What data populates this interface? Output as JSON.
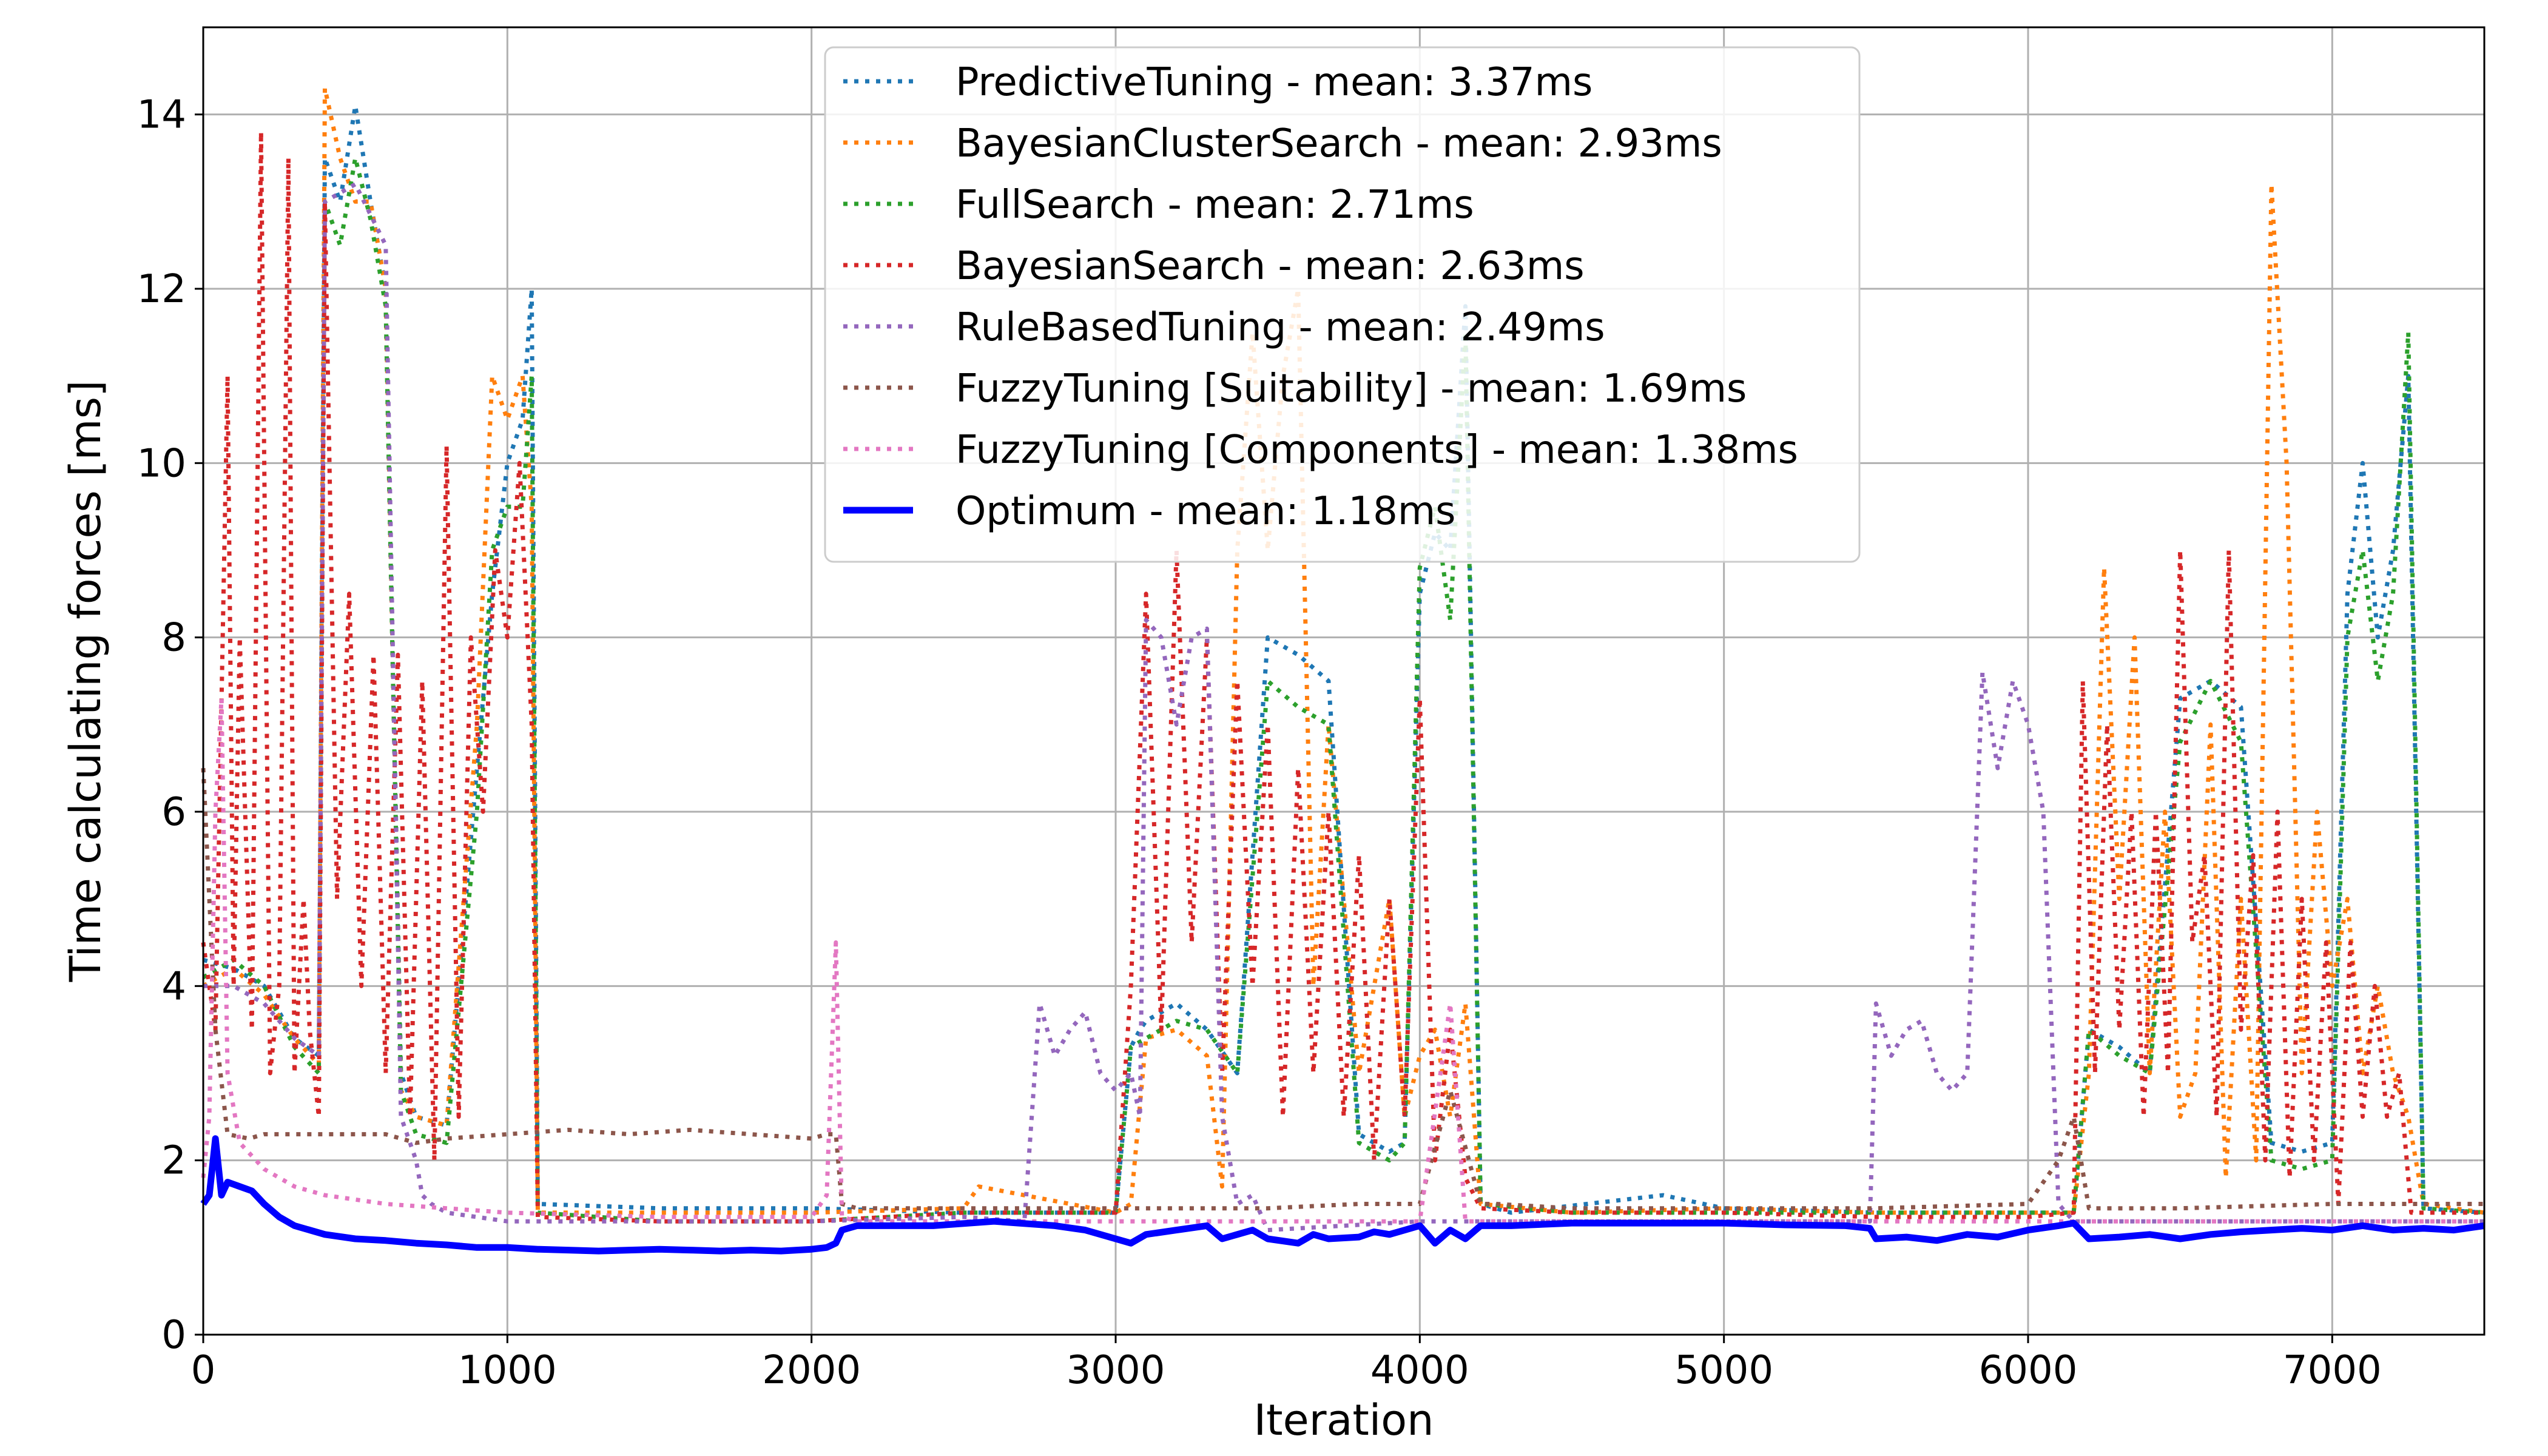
{
  "chart_data": {
    "type": "line",
    "title": "",
    "xlabel": "Iteration",
    "ylabel": "Time calculating forces [ms]",
    "xlim": [
      0,
      7500
    ],
    "ylim": [
      0,
      15
    ],
    "xticks": [
      0,
      1000,
      2000,
      3000,
      4000,
      5000,
      6000,
      7000
    ],
    "yticks": [
      0,
      2,
      4,
      6,
      8,
      10,
      12,
      14
    ],
    "grid": true,
    "legend_position": "top-center",
    "series": [
      {
        "name": "PredictiveTuning - mean: 3.37ms",
        "color": "#1f77b4",
        "style": "dotted",
        "x": [
          0,
          100,
          200,
          300,
          380,
          400,
          450,
          500,
          550,
          600,
          650,
          700,
          800,
          900,
          950,
          1000,
          1050,
          1080,
          1100,
          1500,
          2000,
          2500,
          3000,
          3050,
          3080,
          3100,
          3200,
          3300,
          3400,
          3500,
          3600,
          3700,
          3800,
          3900,
          3950,
          4000,
          4050,
          4100,
          4150,
          4200,
          4300,
          4800,
          5000,
          5500,
          6000,
          6150,
          6200,
          6300,
          6400,
          6500,
          6600,
          6700,
          6800,
          6900,
          7000,
          7050,
          7100,
          7150,
          7200,
          7250,
          7300,
          7500
        ],
        "y": [
          4.3,
          4.2,
          4.0,
          3.4,
          3.2,
          13.5,
          13.0,
          14.1,
          13.0,
          12.0,
          3.0,
          2.5,
          2.4,
          6.5,
          8.5,
          10.0,
          10.5,
          12.0,
          1.5,
          1.45,
          1.45,
          1.4,
          1.4,
          3.3,
          3.5,
          3.6,
          3.8,
          3.5,
          3.0,
          8.0,
          7.8,
          7.5,
          2.3,
          2.1,
          2.2,
          8.5,
          9.2,
          9.0,
          11.8,
          1.5,
          1.4,
          1.6,
          1.45,
          1.4,
          1.4,
          1.4,
          3.5,
          3.3,
          3.0,
          7.3,
          7.5,
          7.2,
          2.2,
          2.1,
          2.2,
          8.5,
          10.0,
          8.0,
          9.0,
          11.0,
          1.45,
          1.4
        ]
      },
      {
        "name": "BayesianClusterSearch - mean: 2.93ms",
        "color": "#ff7f0e",
        "style": "dotted",
        "x": [
          0,
          100,
          200,
          300,
          380,
          400,
          450,
          500,
          550,
          600,
          650,
          700,
          800,
          900,
          950,
          1000,
          1050,
          1080,
          1100,
          1500,
          2000,
          2500,
          2550,
          3000,
          3050,
          3100,
          3200,
          3300,
          3350,
          3400,
          3450,
          3500,
          3550,
          3600,
          3650,
          3700,
          3800,
          3900,
          3950,
          4000,
          4050,
          4100,
          4150,
          4200,
          4500,
          5000,
          5500,
          6000,
          6150,
          6200,
          6250,
          6300,
          6350,
          6400,
          6450,
          6500,
          6550,
          6600,
          6650,
          6700,
          6750,
          6800,
          6850,
          6900,
          6950,
          7000,
          7050,
          7100,
          7150,
          7200,
          7250,
          7300,
          7500
        ],
        "y": [
          4.0,
          4.2,
          3.9,
          3.4,
          3.1,
          14.3,
          13.5,
          13.0,
          13.0,
          12.0,
          2.8,
          2.5,
          2.4,
          7.0,
          11.0,
          10.5,
          11.0,
          9.5,
          1.4,
          1.4,
          1.4,
          1.45,
          1.7,
          1.4,
          1.5,
          3.4,
          3.5,
          3.2,
          1.7,
          9.0,
          11.5,
          9.0,
          11.0,
          12.0,
          4.0,
          7.0,
          3.0,
          5.0,
          2.5,
          3.2,
          3.5,
          2.5,
          3.8,
          1.5,
          1.4,
          1.45,
          1.4,
          1.4,
          1.4,
          3.0,
          8.8,
          5.0,
          8.0,
          3.0,
          6.0,
          2.5,
          3.0,
          7.0,
          1.8,
          5.0,
          2.0,
          13.2,
          10.0,
          3.0,
          6.0,
          4.0,
          5.0,
          3.0,
          4.0,
          3.0,
          2.5,
          1.5,
          1.4
        ]
      },
      {
        "name": "FullSearch - mean: 2.71ms",
        "color": "#2ca02c",
        "style": "dotted",
        "x": [
          0,
          100,
          200,
          300,
          380,
          400,
          450,
          500,
          550,
          600,
          650,
          700,
          800,
          900,
          950,
          1000,
          1050,
          1080,
          1100,
          1500,
          2000,
          2500,
          3000,
          3050,
          3100,
          3200,
          3300,
          3400,
          3500,
          3600,
          3700,
          3800,
          3900,
          3950,
          4000,
          4050,
          4100,
          4150,
          4200,
          4500,
          5000,
          5500,
          6000,
          6150,
          6200,
          6300,
          6400,
          6500,
          6600,
          6700,
          6800,
          6900,
          7000,
          7050,
          7100,
          7150,
          7200,
          7250,
          7300,
          7500
        ],
        "y": [
          4.1,
          4.3,
          4.0,
          3.3,
          3.0,
          13.0,
          12.5,
          13.5,
          12.8,
          11.8,
          2.8,
          2.3,
          2.2,
          6.0,
          9.0,
          9.5,
          9.5,
          11.0,
          1.4,
          1.3,
          1.3,
          1.4,
          1.4,
          3.3,
          3.4,
          3.6,
          3.5,
          3.0,
          7.5,
          7.2,
          7.0,
          2.2,
          2.0,
          2.2,
          8.8,
          9.5,
          8.2,
          11.5,
          1.5,
          1.4,
          1.4,
          1.4,
          1.4,
          1.4,
          3.5,
          3.2,
          3.0,
          6.8,
          7.5,
          6.8,
          2.0,
          1.9,
          2.0,
          8.0,
          9.0,
          7.5,
          8.5,
          11.5,
          1.45,
          1.4
        ]
      },
      {
        "name": "BayesianSearch - mean: 2.63ms",
        "color": "#d62728",
        "style": "dotted",
        "x": [
          0,
          40,
          80,
          100,
          120,
          160,
          190,
          220,
          250,
          280,
          300,
          330,
          350,
          380,
          400,
          440,
          480,
          520,
          560,
          600,
          640,
          680,
          720,
          760,
          800,
          840,
          880,
          920,
          960,
          1000,
          1040,
          1080,
          1100,
          1500,
          2000,
          2500,
          3000,
          3050,
          3100,
          3150,
          3200,
          3250,
          3300,
          3350,
          3400,
          3450,
          3500,
          3550,
          3600,
          3650,
          3700,
          3750,
          3800,
          3850,
          3900,
          3950,
          4000,
          4050,
          4100,
          4150,
          4200,
          4500,
          5000,
          5500,
          6000,
          6150,
          6180,
          6220,
          6260,
          6300,
          6340,
          6380,
          6420,
          6460,
          6500,
          6540,
          6580,
          6620,
          6660,
          6700,
          6740,
          6780,
          6820,
          6860,
          6900,
          6940,
          6980,
          7020,
          7060,
          7100,
          7140,
          7180,
          7220,
          7260,
          7300,
          7500
        ],
        "y": [
          4.5,
          3.5,
          11.0,
          4.0,
          8.0,
          3.5,
          13.8,
          3.0,
          4.0,
          13.5,
          3.0,
          5.0,
          3.5,
          2.5,
          13.0,
          5.0,
          8.5,
          4.0,
          7.8,
          3.0,
          7.8,
          2.5,
          7.5,
          2.0,
          10.2,
          2.5,
          8.0,
          6.0,
          9.0,
          8.0,
          10.0,
          7.0,
          1.35,
          1.3,
          1.3,
          1.4,
          1.4,
          4.0,
          8.5,
          3.5,
          9.0,
          4.5,
          8.0,
          3.0,
          7.5,
          4.0,
          7.0,
          2.5,
          6.5,
          3.0,
          6.0,
          2.5,
          5.5,
          2.0,
          5.0,
          2.5,
          7.3,
          2.0,
          3.5,
          1.8,
          1.45,
          1.4,
          1.4,
          1.35,
          1.35,
          1.4,
          7.5,
          3.0,
          7.0,
          3.5,
          6.0,
          2.5,
          6.0,
          3.0,
          9.0,
          4.5,
          5.5,
          2.5,
          9.0,
          3.5,
          5.5,
          2.0,
          6.0,
          1.8,
          5.0,
          2.0,
          4.5,
          1.5,
          4.5,
          2.5,
          4.0,
          2.5,
          3.0,
          1.4,
          1.4,
          1.4
        ]
      },
      {
        "name": "RuleBasedTuning - mean: 2.49ms",
        "color": "#9467bd",
        "style": "dotted",
        "x": [
          0,
          100,
          200,
          300,
          380,
          400,
          500,
          600,
          650,
          700,
          720,
          750,
          800,
          1000,
          1500,
          2000,
          2500,
          2700,
          2750,
          2800,
          2850,
          2900,
          2950,
          3000,
          3050,
          3080,
          3100,
          3150,
          3200,
          3250,
          3300,
          3350,
          3400,
          3450,
          3500,
          4000,
          4500,
          5000,
          5400,
          5480,
          5500,
          5550,
          5600,
          5650,
          5700,
          5750,
          5800,
          5850,
          5900,
          5950,
          6000,
          6050,
          6100,
          6150,
          6200,
          6500,
          7000,
          7500
        ],
        "y": [
          4.0,
          4.0,
          3.8,
          3.4,
          3.2,
          13.0,
          13.2,
          12.5,
          2.5,
          2.0,
          1.6,
          1.5,
          1.4,
          1.3,
          1.3,
          1.3,
          1.35,
          1.3,
          3.8,
          3.2,
          3.5,
          3.7,
          3.0,
          2.8,
          3.0,
          2.5,
          8.2,
          8.0,
          7.0,
          8.0,
          8.1,
          2.5,
          1.5,
          1.6,
          1.2,
          1.3,
          1.3,
          1.3,
          1.3,
          1.3,
          3.8,
          3.2,
          3.5,
          3.6,
          3.0,
          2.8,
          3.0,
          7.6,
          6.5,
          7.5,
          7.0,
          6.0,
          1.5,
          1.3,
          1.3,
          1.3,
          1.3,
          1.3
        ]
      },
      {
        "name": "FuzzyTuning [Suitability] - mean: 1.69ms",
        "color": "#8c564b",
        "style": "dotted",
        "x": [
          0,
          40,
          80,
          150,
          200,
          300,
          380,
          400,
          500,
          600,
          650,
          700,
          800,
          1000,
          1200,
          1400,
          1600,
          1800,
          2000,
          2050,
          2080,
          2100,
          2150,
          2200,
          2500,
          3000,
          3500,
          3800,
          4000,
          4100,
          4200,
          4250,
          4500,
          5000,
          5500,
          6000,
          6100,
          6150,
          6200,
          6300,
          6500,
          7000,
          7500
        ],
        "y": [
          6.5,
          3.5,
          2.3,
          2.25,
          2.3,
          2.3,
          2.3,
          2.3,
          2.3,
          2.3,
          2.25,
          2.2,
          2.25,
          2.3,
          2.35,
          2.3,
          2.35,
          2.3,
          2.25,
          2.3,
          2.3,
          1.5,
          1.45,
          1.45,
          1.45,
          1.45,
          1.45,
          1.5,
          1.5,
          2.8,
          1.5,
          1.5,
          1.45,
          1.45,
          1.45,
          1.5,
          2.0,
          2.5,
          1.45,
          1.45,
          1.45,
          1.5,
          1.5
        ]
      },
      {
        "name": "FuzzyTuning [Components] - mean: 1.38ms",
        "color": "#e377c2",
        "style": "dotted",
        "x": [
          0,
          20,
          40,
          60,
          80,
          120,
          200,
          300,
          400,
          500,
          600,
          800,
          1000,
          1500,
          2000,
          2050,
          2080,
          2100,
          2150,
          2200,
          2500,
          3000,
          3500,
          4000,
          4100,
          4150,
          4200,
          4500,
          5000,
          5500,
          6000,
          6200,
          6500,
          7000,
          7500
        ],
        "y": [
          1.8,
          2.5,
          6.0,
          7.3,
          3.0,
          2.2,
          1.9,
          1.7,
          1.6,
          1.55,
          1.5,
          1.45,
          1.4,
          1.35,
          1.35,
          1.6,
          4.5,
          1.35,
          1.3,
          1.3,
          1.3,
          1.3,
          1.3,
          1.3,
          3.8,
          1.3,
          1.3,
          1.3,
          1.3,
          1.3,
          1.3,
          1.3,
          1.3,
          1.3,
          1.3
        ]
      },
      {
        "name": "Optimum - mean: 1.18ms",
        "color": "#0000ff",
        "style": "solid",
        "x": [
          0,
          20,
          40,
          60,
          80,
          120,
          160,
          200,
          250,
          300,
          400,
          500,
          600,
          700,
          800,
          900,
          1000,
          1100,
          1200,
          1300,
          1400,
          1500,
          1600,
          1700,
          1800,
          1900,
          2000,
          2050,
          2080,
          2100,
          2150,
          2200,
          2400,
          2600,
          2800,
          2900,
          3000,
          3050,
          3100,
          3200,
          3300,
          3350,
          3400,
          3450,
          3500,
          3600,
          3650,
          3700,
          3800,
          3850,
          3900,
          3950,
          4000,
          4050,
          4100,
          4150,
          4200,
          4300,
          4500,
          4700,
          5000,
          5200,
          5400,
          5480,
          5500,
          5600,
          5700,
          5800,
          5900,
          6000,
          6100,
          6150,
          6200,
          6300,
          6400,
          6500,
          6600,
          6700,
          6800,
          6900,
          7000,
          7100,
          7200,
          7300,
          7400,
          7500
        ],
        "y": [
          1.5,
          1.6,
          2.25,
          1.6,
          1.75,
          1.7,
          1.65,
          1.5,
          1.35,
          1.25,
          1.15,
          1.1,
          1.08,
          1.05,
          1.03,
          1.0,
          1.0,
          0.98,
          0.97,
          0.96,
          0.97,
          0.98,
          0.97,
          0.96,
          0.97,
          0.96,
          0.98,
          1.0,
          1.05,
          1.2,
          1.25,
          1.25,
          1.25,
          1.3,
          1.25,
          1.2,
          1.1,
          1.05,
          1.15,
          1.2,
          1.25,
          1.1,
          1.15,
          1.2,
          1.1,
          1.05,
          1.15,
          1.1,
          1.12,
          1.18,
          1.15,
          1.2,
          1.25,
          1.05,
          1.2,
          1.1,
          1.25,
          1.25,
          1.28,
          1.28,
          1.28,
          1.26,
          1.25,
          1.22,
          1.1,
          1.12,
          1.08,
          1.15,
          1.12,
          1.2,
          1.25,
          1.28,
          1.1,
          1.12,
          1.15,
          1.1,
          1.15,
          1.18,
          1.2,
          1.22,
          1.2,
          1.25,
          1.2,
          1.22,
          1.2,
          1.25
        ]
      }
    ]
  }
}
